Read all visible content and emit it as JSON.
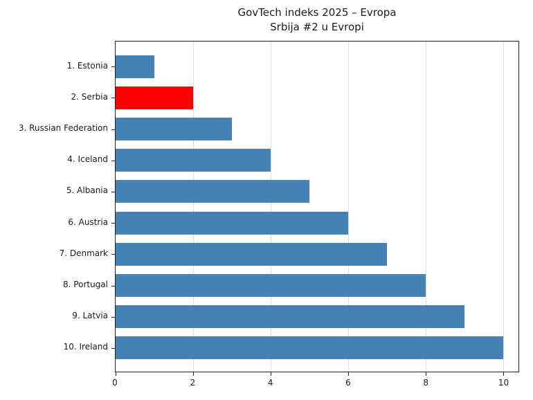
{
  "chart_data": {
    "type": "bar",
    "orientation": "horizontal",
    "title": "GovTech indeks 2025 – Evropa",
    "subtitle": "Srbija #2 u Evropi",
    "categories": [
      "1. Estonia",
      "2. Serbia",
      "3. Russian Federation",
      "4. Iceland",
      "5. Albania",
      "6. Austria",
      "7. Denmark",
      "8. Portugal",
      "9. Latvia",
      "10. Ireland"
    ],
    "values": [
      1,
      2,
      3,
      4,
      5,
      6,
      7,
      8,
      9,
      10
    ],
    "xlabel": "",
    "ylabel": "",
    "xlim": [
      0,
      10.4
    ],
    "xticks": [
      0,
      2,
      4,
      6,
      8,
      10
    ],
    "grid": "vertical",
    "legend": "none",
    "colors": {
      "bar_default": "#4682B4",
      "bar_highlight": "#FF0000",
      "highlight_index": 1,
      "grid_line": "#DCDCDC",
      "spine": "#1F1F1F",
      "text": "#1A1A1A"
    }
  }
}
